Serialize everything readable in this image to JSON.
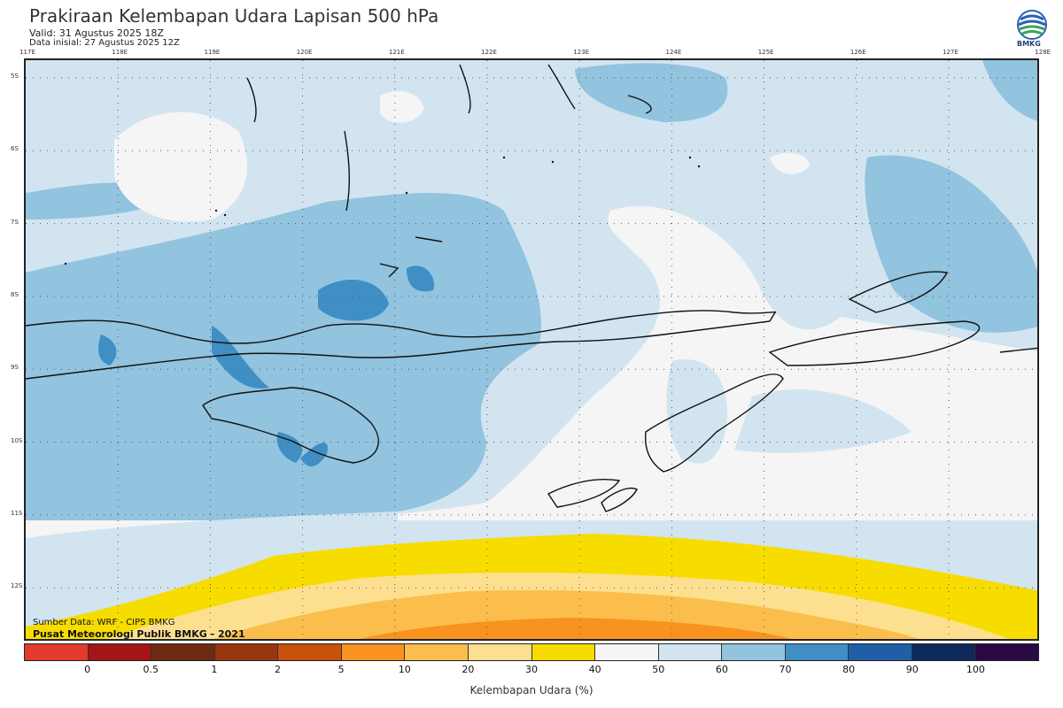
{
  "header": {
    "title": "Prakiraan Kelembapan Udara Lapisan 500 hPa",
    "valid": "Valid: 31 Agustus 2025 18Z",
    "initial": "Data inisial: 27 Agustus 2025 12Z",
    "logo_text": "BMKG"
  },
  "axes": {
    "lon_labels": [
      "117E",
      "118E",
      "119E",
      "120E",
      "121E",
      "122E",
      "123E",
      "124E",
      "125E",
      "126E",
      "127E",
      "128E"
    ],
    "lat_labels": [
      "5S",
      "6S",
      "7S",
      "8S",
      "9S",
      "10S",
      "11S",
      "12S"
    ]
  },
  "credits": {
    "source": "Sumber Data: WRF - CIPS BMKG",
    "publisher": "Pusat Meteorologi Publik BMKG - 2021"
  },
  "colorbar": {
    "label": "Kelembapan Udara (%)",
    "ticks": [
      "0",
      "0.5",
      "1",
      "2",
      "5",
      "10",
      "20",
      "30",
      "40",
      "50",
      "60",
      "70",
      "80",
      "90",
      "100"
    ],
    "colors": [
      "#e23b2e",
      "#a51515",
      "#6d2a10",
      "#9a360f",
      "#c9510e",
      "#f7931e",
      "#fbbe4c",
      "#fde08f",
      "#f7dc00",
      "#f5f5f5",
      "#d2e4f0",
      "#92c3df",
      "#3f8fc4",
      "#1e5fa8",
      "#0c2a5e",
      "#2a0a45"
    ]
  }
}
